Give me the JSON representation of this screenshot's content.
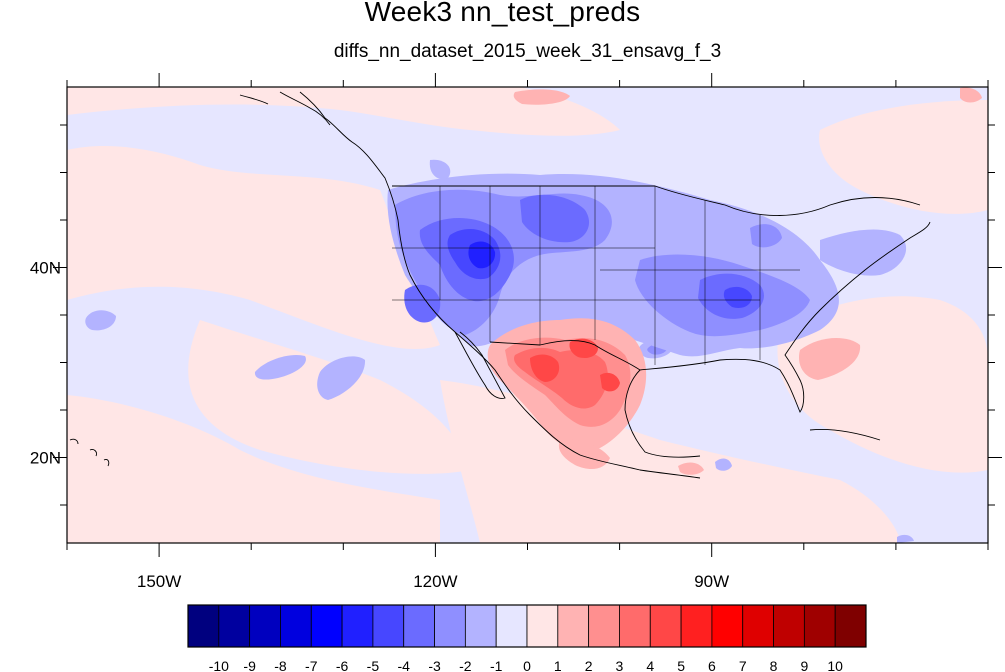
{
  "figure": {
    "title": "Week3 nn_test_preds",
    "subtitle": "diffs_nn_dataset_2015_week_31_ensavg_f_3"
  },
  "map_axes": {
    "lon_range": [
      -160,
      -60
    ],
    "lat_range": [
      11,
      59
    ],
    "x_ticks": [
      {
        "lon": -150,
        "label": "150W"
      },
      {
        "lon": -120,
        "label": "120W"
      },
      {
        "lon": -90,
        "label": "90W"
      }
    ],
    "y_ticks": [
      {
        "lat": 40,
        "label": "40N"
      },
      {
        "lat": 20,
        "label": "20N"
      }
    ]
  },
  "colorbar": {
    "labels": [
      "-10",
      "-9",
      "-8",
      "-7",
      "-6",
      "-5",
      "-4",
      "-3",
      "-2",
      "-1",
      "0",
      "1",
      "2",
      "3",
      "4",
      "5",
      "6",
      "7",
      "8",
      "9",
      "10"
    ],
    "colors": [
      "#00007f",
      "#00009f",
      "#0000bf",
      "#0000df",
      "#0000ff",
      "#2020ff",
      "#4747ff",
      "#6b6bff",
      "#8f8fff",
      "#b3b3ff",
      "#e6e6ff",
      "#ffe6e6",
      "#ffb3b3",
      "#ff8f8f",
      "#ff6b6b",
      "#ff4747",
      "#ff2020",
      "#ff0000",
      "#df0000",
      "#bf0000",
      "#9f0000",
      "#7f0000"
    ]
  },
  "field_colors": {
    "ocean_base": "#e6e6ff",
    "slight_pos": "#ffe6e6",
    "neg1": "#b3b3ff",
    "neg2": "#8f8fff",
    "neg3": "#6b6bff",
    "neg4": "#4747ff",
    "neg5": "#2020ff",
    "pos1": "#ffb3b3",
    "pos2": "#ff8f8f",
    "pos3": "#ff6b6b",
    "pos4": "#ff4747"
  }
}
